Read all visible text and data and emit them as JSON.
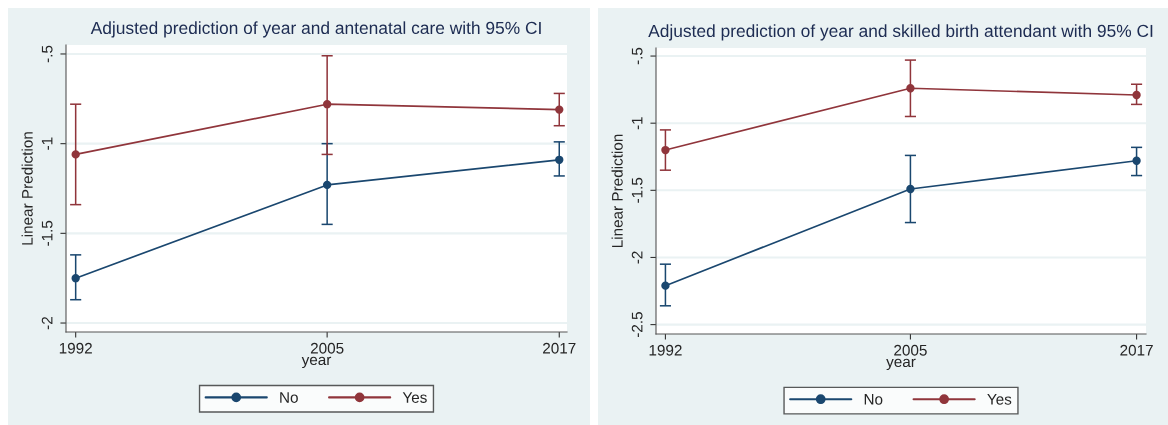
{
  "chart_data": [
    {
      "type": "line",
      "title": "Adjusted prediction of year and antenatal care with 95% CI",
      "xlabel": "year",
      "ylabel": "Linear Prediction",
      "x": [
        1992,
        2005,
        2017
      ],
      "xlim": [
        1991.5,
        2017.4
      ],
      "xticks": [
        1992,
        2005,
        2017
      ],
      "ylim": [
        -2.05,
        -0.45
      ],
      "yticks": [
        {
          "value": -2,
          "label": "-2"
        },
        {
          "value": -1.5,
          "label": "-1.5"
        },
        {
          "value": -1,
          "label": "-1"
        },
        {
          "value": -0.5,
          "label": "-.5"
        }
      ],
      "grid": "y",
      "legend": "bottom",
      "marker": "circle",
      "line_style": "solid",
      "series": [
        {
          "name": "No",
          "color": "#1a476f",
          "values": [
            -1.75,
            -1.23,
            -1.09
          ],
          "errors": [
            [
              -1.87,
              -1.62
            ],
            [
              -1.45,
              -1.0
            ],
            [
              -1.18,
              -0.99
            ]
          ]
        },
        {
          "name": "Yes",
          "color": "#90353b",
          "values": [
            -1.06,
            -0.78,
            -0.81
          ],
          "errors": [
            [
              -1.34,
              -0.78
            ],
            [
              -1.06,
              -0.51
            ],
            [
              -0.9,
              -0.72
            ]
          ]
        }
      ]
    },
    {
      "type": "line",
      "title": "Adjusted prediction of year and skilled birth attendant with 95% CI",
      "xlabel": "year",
      "ylabel": "Linear Prediction",
      "x": [
        1992,
        2005,
        2017
      ],
      "xlim": [
        1991.5,
        2017.5
      ],
      "xticks": [
        1992,
        2005,
        2017
      ],
      "ylim": [
        -2.57,
        -0.44
      ],
      "yticks": [
        {
          "value": -2.5,
          "label": "-2.5"
        },
        {
          "value": -2,
          "label": "-2"
        },
        {
          "value": -1.5,
          "label": "-1.5"
        },
        {
          "value": -1,
          "label": "-1"
        },
        {
          "value": -0.5,
          "label": "-.5"
        }
      ],
      "grid": "y",
      "legend": "bottom",
      "marker": "circle",
      "line_style": "solid",
      "series": [
        {
          "name": "No",
          "color": "#1a476f",
          "values": [
            -2.21,
            -1.49,
            -1.28
          ],
          "errors": [
            [
              -2.36,
              -2.05
            ],
            [
              -1.74,
              -1.24
            ],
            [
              -1.39,
              -1.18
            ]
          ]
        },
        {
          "name": "Yes",
          "color": "#90353b",
          "values": [
            -1.2,
            -0.74,
            -0.79
          ],
          "errors": [
            [
              -1.35,
              -1.05
            ],
            [
              -0.95,
              -0.53
            ],
            [
              -0.86,
              -0.71
            ]
          ]
        }
      ]
    }
  ]
}
